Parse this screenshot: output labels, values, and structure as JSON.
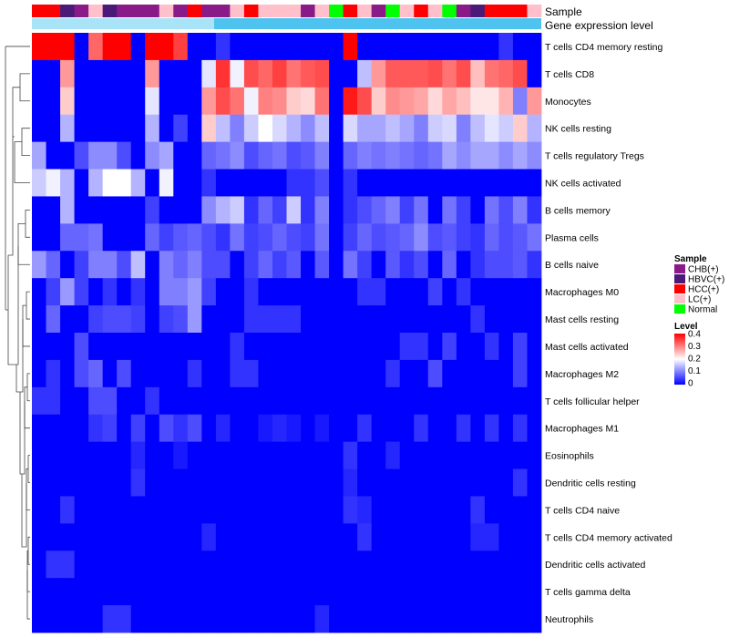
{
  "chart_data": {
    "type": "heatmap",
    "title": "",
    "annotation_tracks": [
      "Sample",
      "Gene expression level"
    ],
    "rows": [
      "T cells CD4 memory resting",
      "T cells CD8",
      "Monocytes",
      "NK cells resting",
      "T cells regulatory  Tregs",
      "NK cells activated",
      "B cells memory",
      "Plasma cells",
      "B cells naive",
      "Macrophages M0",
      "Mast cells resting",
      "Mast cells activated",
      "Macrophages M2",
      "T cells follicular helper",
      "Macrophages M1",
      "Eosinophils",
      "Dendritic cells resting",
      "T cells CD4 naive",
      "T cells CD4 memory activated",
      "Dendritic cells activated",
      "T cells gamma delta",
      "Neutrophils"
    ],
    "sample_categories": [
      "CHB(+)",
      "HBVC(+)",
      "HCC(+)",
      "LC(+)",
      "Normal"
    ],
    "sample_colors": {
      "CHB(+)": "#8b1a89",
      "HBVC(+)": "#4b1a78",
      "HCC(+)": "#ff0000",
      "LC(+)": "#ffc0cb",
      "Normal": "#00ff00"
    },
    "samples": [
      "HCC(+)",
      "HCC(+)",
      "HBVC(+)",
      "CHB(+)",
      "LC(+)",
      "HBVC(+)",
      "CHB(+)",
      "CHB(+)",
      "CHB(+)",
      "LC(+)",
      "CHB(+)",
      "HCC(+)",
      "CHB(+)",
      "CHB(+)",
      "LC(+)",
      "HCC(+)",
      "LC(+)",
      "LC(+)",
      "LC(+)",
      "CHB(+)",
      "LC(+)",
      "Normal",
      "HCC(+)",
      "LC(+)",
      "CHB(+)",
      "Normal",
      "LC(+)",
      "HCC(+)",
      "LC(+)",
      "Normal",
      "CHB(+)",
      "HBVC(+)",
      "HCC(+)",
      "HCC(+)",
      "HCC(+)",
      "LC(+)"
    ],
    "expression_level_color": "#4fc3ef",
    "expression_level_light": "#a9e3f7",
    "legend_sample_title": "Sample",
    "legend_level_title": "Level",
    "level_ticks": [
      "0.4",
      "0.3",
      "0.2",
      "0.1",
      "0"
    ],
    "level_range": [
      0,
      0.4
    ],
    "color_low": "#0000ff",
    "color_mid": "#ffffff",
    "color_high": "#ff0000",
    "values": [
      [
        0.4,
        0.4,
        0.4,
        0.0,
        0.32,
        0.4,
        0.4,
        0.0,
        0.4,
        0.4,
        0.35,
        0.0,
        0.0,
        0.04,
        0.0,
        0.0,
        0.0,
        0.0,
        0.0,
        0.0,
        0.0,
        0.0,
        0.4,
        0.0,
        0.0,
        0.0,
        0.0,
        0.0,
        0.0,
        0.0,
        0.0,
        0.0,
        0.0,
        0.04,
        0.0,
        0.0
      ],
      [
        0.0,
        0.0,
        0.28,
        0.0,
        0.0,
        0.0,
        0.0,
        0.0,
        0.28,
        0.0,
        0.0,
        0.0,
        0.18,
        0.36,
        0.19,
        0.34,
        0.32,
        0.35,
        0.31,
        0.33,
        0.34,
        0.0,
        0.0,
        0.15,
        0.28,
        0.33,
        0.33,
        0.33,
        0.34,
        0.31,
        0.34,
        0.25,
        0.31,
        0.32,
        0.34,
        0.0
      ],
      [
        0.0,
        0.0,
        0.24,
        0.0,
        0.0,
        0.0,
        0.0,
        0.0,
        0.18,
        0.0,
        0.0,
        0.0,
        0.28,
        0.34,
        0.31,
        0.19,
        0.3,
        0.29,
        0.24,
        0.23,
        0.31,
        0.0,
        0.38,
        0.34,
        0.24,
        0.29,
        0.28,
        0.27,
        0.23,
        0.27,
        0.25,
        0.22,
        0.22,
        0.26,
        0.1,
        0.28
      ],
      [
        0.0,
        0.0,
        0.14,
        0.0,
        0.0,
        0.0,
        0.0,
        0.0,
        0.14,
        0.0,
        0.05,
        0.0,
        0.24,
        0.15,
        0.1,
        0.16,
        0.2,
        0.17,
        0.14,
        0.11,
        0.15,
        0.0,
        0.17,
        0.13,
        0.13,
        0.15,
        0.13,
        0.1,
        0.16,
        0.17,
        0.1,
        0.15,
        0.18,
        0.16,
        0.24,
        0.14
      ],
      [
        0.13,
        0.0,
        0.0,
        0.06,
        0.11,
        0.11,
        0.06,
        0.0,
        0.11,
        0.13,
        0.0,
        0.0,
        0.08,
        0.09,
        0.11,
        0.06,
        0.08,
        0.09,
        0.06,
        0.07,
        0.1,
        0.0,
        0.08,
        0.1,
        0.09,
        0.1,
        0.09,
        0.08,
        0.09,
        0.13,
        0.11,
        0.13,
        0.13,
        0.11,
        0.13,
        0.11
      ],
      [
        0.16,
        0.19,
        0.14,
        0.0,
        0.14,
        0.2,
        0.2,
        0.14,
        0.0,
        0.19,
        0.0,
        0.0,
        0.04,
        0.0,
        0.0,
        0.0,
        0.0,
        0.0,
        0.04,
        0.04,
        0.06,
        0.0,
        0.04,
        0.0,
        0.0,
        0.0,
        0.0,
        0.0,
        0.0,
        0.0,
        0.0,
        0.0,
        0.0,
        0.0,
        0.0,
        0.0
      ],
      [
        0.0,
        0.0,
        0.14,
        0.0,
        0.0,
        0.0,
        0.0,
        0.0,
        0.05,
        0.0,
        0.0,
        0.0,
        0.11,
        0.14,
        0.16,
        0.04,
        0.08,
        0.05,
        0.16,
        0.04,
        0.1,
        0.0,
        0.04,
        0.06,
        0.08,
        0.1,
        0.05,
        0.09,
        0.0,
        0.09,
        0.05,
        0.0,
        0.09,
        0.06,
        0.1,
        0.04
      ],
      [
        0.0,
        0.0,
        0.08,
        0.08,
        0.09,
        0.0,
        0.0,
        0.0,
        0.08,
        0.05,
        0.07,
        0.08,
        0.06,
        0.04,
        0.09,
        0.05,
        0.06,
        0.08,
        0.06,
        0.05,
        0.09,
        0.0,
        0.05,
        0.08,
        0.06,
        0.07,
        0.08,
        0.11,
        0.06,
        0.07,
        0.05,
        0.04,
        0.08,
        0.06,
        0.07,
        0.09
      ],
      [
        0.12,
        0.08,
        0.0,
        0.05,
        0.1,
        0.1,
        0.06,
        0.15,
        0.0,
        0.1,
        0.08,
        0.1,
        0.06,
        0.06,
        0.0,
        0.05,
        0.08,
        0.05,
        0.07,
        0.0,
        0.07,
        0.0,
        0.09,
        0.05,
        0.0,
        0.07,
        0.04,
        0.06,
        0.0,
        0.08,
        0.0,
        0.04,
        0.06,
        0.06,
        0.07,
        0.04
      ],
      [
        0.0,
        0.05,
        0.12,
        0.05,
        0.0,
        0.04,
        0.0,
        0.04,
        0.0,
        0.1,
        0.1,
        0.12,
        0.05,
        0.0,
        0.0,
        0.04,
        0.0,
        0.0,
        0.0,
        0.0,
        0.0,
        0.0,
        0.0,
        0.04,
        0.04,
        0.0,
        0.0,
        0.0,
        0.05,
        0.0,
        0.04,
        0.0,
        0.0,
        0.0,
        0.0,
        0.0
      ],
      [
        0.0,
        0.08,
        0.0,
        0.0,
        0.05,
        0.06,
        0.06,
        0.05,
        0.0,
        0.05,
        0.06,
        0.12,
        0.0,
        0.0,
        0.0,
        0.04,
        0.04,
        0.04,
        0.04,
        0.0,
        0.0,
        0.0,
        0.0,
        0.0,
        0.0,
        0.0,
        0.0,
        0.0,
        0.0,
        0.0,
        0.0,
        0.04,
        0.0,
        0.0,
        0.0,
        0.0
      ],
      [
        0.0,
        0.0,
        0.0,
        0.06,
        0.0,
        0.0,
        0.0,
        0.0,
        0.0,
        0.0,
        0.0,
        0.0,
        0.0,
        0.0,
        0.04,
        0.0,
        0.0,
        0.0,
        0.0,
        0.0,
        0.0,
        0.0,
        0.0,
        0.0,
        0.0,
        0.0,
        0.04,
        0.04,
        0.0,
        0.05,
        0.0,
        0.0,
        0.04,
        0.0,
        0.05,
        0.0
      ],
      [
        0.0,
        0.04,
        0.0,
        0.06,
        0.08,
        0.0,
        0.06,
        0.0,
        0.0,
        0.0,
        0.0,
        0.04,
        0.0,
        0.0,
        0.04,
        0.04,
        0.0,
        0.0,
        0.0,
        0.0,
        0.0,
        0.0,
        0.0,
        0.0,
        0.0,
        0.04,
        0.0,
        0.0,
        0.06,
        0.0,
        0.0,
        0.0,
        0.0,
        0.0,
        0.05,
        0.0
      ],
      [
        0.04,
        0.04,
        0.0,
        0.0,
        0.06,
        0.06,
        0.0,
        0.0,
        0.04,
        0.0,
        0.0,
        0.0,
        0.0,
        0.0,
        0.0,
        0.0,
        0.0,
        0.0,
        0.0,
        0.0,
        0.0,
        0.0,
        0.0,
        0.0,
        0.0,
        0.0,
        0.0,
        0.0,
        0.0,
        0.0,
        0.0,
        0.0,
        0.0,
        0.0,
        0.0,
        0.0
      ],
      [
        0.0,
        0.0,
        0.0,
        0.0,
        0.04,
        0.05,
        0.0,
        0.05,
        0.0,
        0.06,
        0.04,
        0.06,
        0.0,
        0.03,
        0.0,
        0.0,
        0.02,
        0.03,
        0.02,
        0.0,
        0.02,
        0.0,
        0.0,
        0.04,
        0.0,
        0.0,
        0.0,
        0.04,
        0.0,
        0.0,
        0.04,
        0.0,
        0.04,
        0.0,
        0.04,
        0.0
      ],
      [
        0.0,
        0.0,
        0.0,
        0.0,
        0.0,
        0.0,
        0.0,
        0.03,
        0.0,
        0.0,
        0.02,
        0.0,
        0.0,
        0.0,
        0.0,
        0.0,
        0.0,
        0.0,
        0.0,
        0.0,
        0.0,
        0.0,
        0.04,
        0.0,
        0.0,
        0.03,
        0.0,
        0.0,
        0.0,
        0.0,
        0.0,
        0.0,
        0.0,
        0.0,
        0.0,
        0.0
      ],
      [
        0.0,
        0.0,
        0.0,
        0.0,
        0.0,
        0.0,
        0.0,
        0.04,
        0.0,
        0.0,
        0.0,
        0.0,
        0.0,
        0.0,
        0.0,
        0.0,
        0.0,
        0.0,
        0.0,
        0.0,
        0.0,
        0.0,
        0.03,
        0.0,
        0.0,
        0.0,
        0.0,
        0.0,
        0.0,
        0.0,
        0.0,
        0.0,
        0.0,
        0.0,
        0.04,
        0.0
      ],
      [
        0.0,
        0.0,
        0.04,
        0.0,
        0.0,
        0.0,
        0.0,
        0.0,
        0.0,
        0.0,
        0.0,
        0.0,
        0.0,
        0.0,
        0.0,
        0.0,
        0.0,
        0.0,
        0.0,
        0.0,
        0.0,
        0.0,
        0.04,
        0.03,
        0.0,
        0.0,
        0.0,
        0.0,
        0.0,
        0.0,
        0.0,
        0.04,
        0.0,
        0.0,
        0.0,
        0.0
      ],
      [
        0.0,
        0.0,
        0.0,
        0.0,
        0.0,
        0.0,
        0.0,
        0.0,
        0.0,
        0.0,
        0.0,
        0.0,
        0.03,
        0.0,
        0.0,
        0.0,
        0.0,
        0.0,
        0.0,
        0.0,
        0.0,
        0.0,
        0.0,
        0.04,
        0.0,
        0.0,
        0.0,
        0.0,
        0.0,
        0.0,
        0.0,
        0.03,
        0.03,
        0.0,
        0.0,
        0.0
      ],
      [
        0.0,
        0.04,
        0.04,
        0.0,
        0.0,
        0.0,
        0.0,
        0.0,
        0.0,
        0.0,
        0.0,
        0.0,
        0.0,
        0.0,
        0.0,
        0.0,
        0.0,
        0.0,
        0.0,
        0.0,
        0.0,
        0.0,
        0.0,
        0.0,
        0.0,
        0.0,
        0.0,
        0.0,
        0.0,
        0.0,
        0.0,
        0.0,
        0.0,
        0.0,
        0.0,
        0.0
      ],
      [
        0.0,
        0.0,
        0.0,
        0.0,
        0.0,
        0.0,
        0.0,
        0.0,
        0.0,
        0.0,
        0.0,
        0.0,
        0.0,
        0.0,
        0.0,
        0.0,
        0.0,
        0.0,
        0.0,
        0.0,
        0.0,
        0.0,
        0.0,
        0.0,
        0.0,
        0.0,
        0.0,
        0.0,
        0.0,
        0.0,
        0.0,
        0.0,
        0.0,
        0.0,
        0.0,
        0.0
      ],
      [
        0.0,
        0.0,
        0.0,
        0.0,
        0.0,
        0.04,
        0.04,
        0.0,
        0.0,
        0.0,
        0.0,
        0.0,
        0.0,
        0.0,
        0.0,
        0.0,
        0.0,
        0.0,
        0.0,
        0.0,
        0.03,
        0.0,
        0.0,
        0.0,
        0.0,
        0.0,
        0.0,
        0.0,
        0.0,
        0.0,
        0.0,
        0.0,
        0.0,
        0.0,
        0.0,
        0.0
      ]
    ]
  }
}
